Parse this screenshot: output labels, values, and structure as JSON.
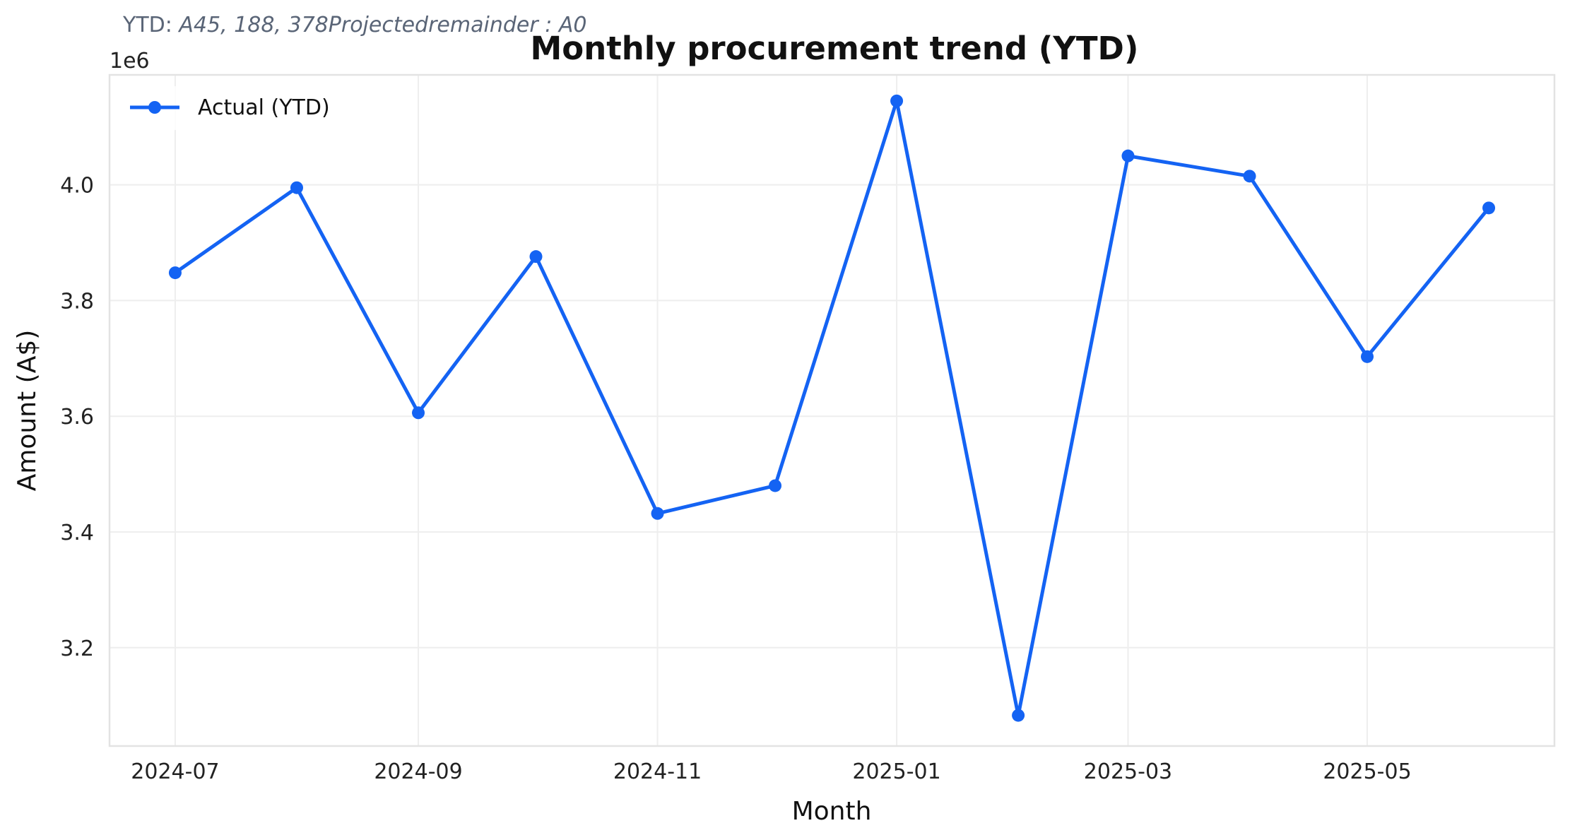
{
  "subtitle": {
    "prefix": "YTD: ",
    "italic_text": "A45, 188, 378Projectedremainder : A0"
  },
  "chart_data": {
    "type": "line",
    "title": "Monthly procurement trend (YTD)",
    "xlabel": "Month",
    "ylabel": "Amount (A$)",
    "y_offset_label": "1e6",
    "x": [
      "2024-07-01",
      "2024-08-01",
      "2024-09-01",
      "2024-10-01",
      "2024-11-01",
      "2024-12-01",
      "2025-01-01",
      "2025-02-01",
      "2025-03-01",
      "2025-04-01",
      "2025-05-01",
      "2025-06-01"
    ],
    "x_ticks": [
      "2024-07",
      "2024-09",
      "2024-11",
      "2025-01",
      "2025-03",
      "2025-05"
    ],
    "y_ticks": [
      "3.2",
      "3.4",
      "3.6",
      "3.8",
      "4.0"
    ],
    "y_tick_values": [
      3.2,
      3.4,
      3.6,
      3.8,
      4.0
    ],
    "ylim": [
      3.03,
      4.19
    ],
    "series": [
      {
        "name": "Actual (YTD)",
        "color": "#1463f3",
        "values": [
          3.848,
          3.995,
          3.606,
          3.876,
          3.432,
          3.48,
          4.145,
          3.083,
          4.05,
          4.015,
          3.703,
          3.96
        ]
      }
    ],
    "grid": true,
    "legend_position": "top-left"
  }
}
